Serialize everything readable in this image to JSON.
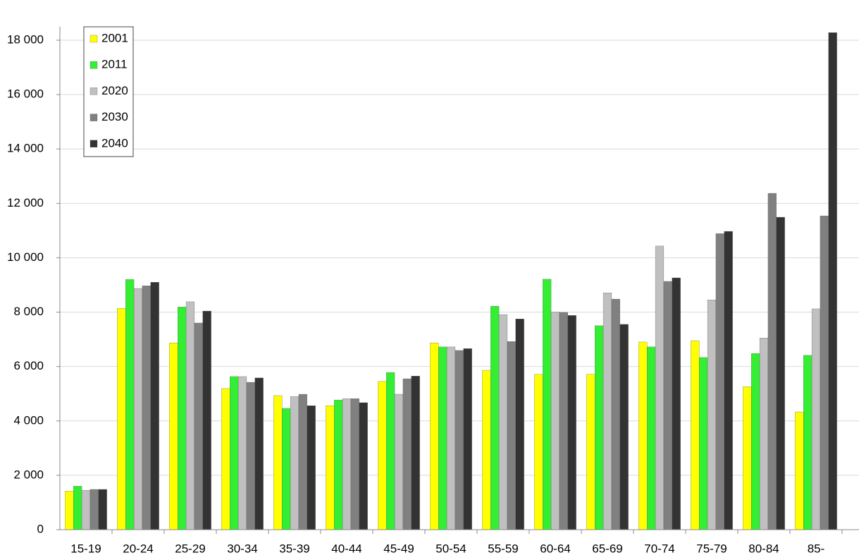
{
  "chart_data": {
    "type": "bar",
    "categories": [
      "15-19",
      "20-24",
      "25-29",
      "30-34",
      "35-39",
      "40-44",
      "45-49",
      "50-54",
      "55-59",
      "60-64",
      "65-69",
      "70-74",
      "75-79",
      "80-84",
      "85-"
    ],
    "series": [
      {
        "name": "2001",
        "color": "#ffff00",
        "values": [
          1420,
          8140,
          6870,
          5190,
          4930,
          4560,
          5450,
          6870,
          5860,
          5710,
          5710,
          6900,
          6950,
          5260,
          4330
        ]
      },
      {
        "name": "2011",
        "color": "#33ee33",
        "values": [
          1600,
          9200,
          8190,
          5630,
          4460,
          4770,
          5780,
          6720,
          8220,
          9210,
          7500,
          6720,
          6330,
          6480,
          6410
        ]
      },
      {
        "name": "2020",
        "color": "#c0c0c0",
        "values": [
          1450,
          8870,
          8380,
          5630,
          4900,
          4820,
          4980,
          6720,
          7910,
          8010,
          8710,
          10430,
          8450,
          7050,
          8120
        ]
      },
      {
        "name": "2030",
        "color": "#808080",
        "values": [
          1480,
          8970,
          7600,
          5420,
          4980,
          4820,
          5550,
          6590,
          6920,
          7990,
          8480,
          9130,
          10890,
          12370,
          11540
        ]
      },
      {
        "name": "2040",
        "color": "#333333",
        "values": [
          1480,
          9100,
          8040,
          5580,
          4560,
          4670,
          5650,
          6660,
          7750,
          7880,
          7550,
          9260,
          10970,
          11490,
          18280
        ]
      }
    ],
    "ylim": [
      0,
      18500
    ],
    "yticks": [
      {
        "value": 0,
        "label": "0"
      },
      {
        "value": 2000,
        "label": "2 000"
      },
      {
        "value": 4000,
        "label": "4 000"
      },
      {
        "value": 6000,
        "label": "6 000"
      },
      {
        "value": 8000,
        "label": "8 000"
      },
      {
        "value": 10000,
        "label": "10 000"
      },
      {
        "value": 12000,
        "label": "12 000"
      },
      {
        "value": 14000,
        "label": "14 000"
      },
      {
        "value": 16000,
        "label": "16 000"
      },
      {
        "value": 18000,
        "label": "18 000"
      }
    ],
    "grid": true,
    "legend": "top-left"
  }
}
